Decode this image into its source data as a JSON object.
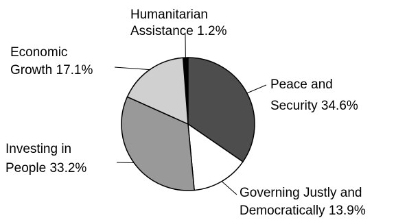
{
  "chart_data": {
    "type": "pie",
    "title": "",
    "slices": [
      {
        "label_lines": [
          "Humanitarian",
          "Assistance 1.2%"
        ],
        "value": 1.2,
        "color": "#000000"
      },
      {
        "label_lines": [
          "Peace and",
          "Security 34.6%"
        ],
        "value": 34.6,
        "color": "#4d4d4d"
      },
      {
        "label_lines": [
          "Governing Justly and",
          "Democratically 13.9%"
        ],
        "value": 13.9,
        "color": "#ffffff"
      },
      {
        "label_lines": [
          "Investing in",
          "People 33.2%"
        ],
        "value": 33.2,
        "color": "#999999"
      },
      {
        "label_lines": [
          "Economic",
          "Growth 17.1%"
        ],
        "value": 17.1,
        "color": "#d0d0d0"
      }
    ]
  }
}
